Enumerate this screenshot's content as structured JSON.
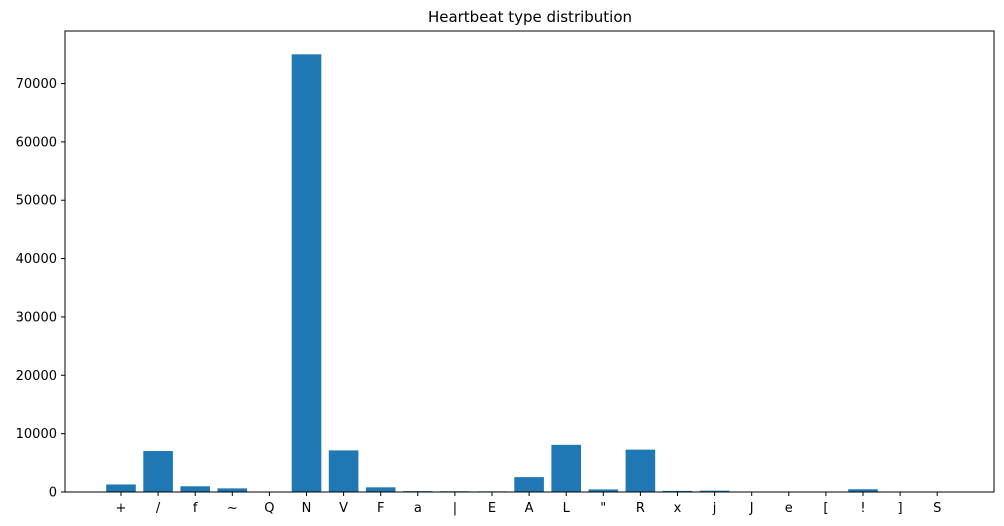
{
  "chart_data": {
    "type": "bar",
    "title": "Heartbeat type distribution",
    "xlabel": "",
    "ylabel": "",
    "categories": [
      "+",
      "/",
      "f",
      "~",
      "Q",
      "N",
      "V",
      "F",
      "a",
      "|",
      "E",
      "A",
      "L",
      "\"",
      "R",
      "x",
      "j",
      "J",
      "e",
      "[",
      "!",
      "]",
      "S"
    ],
    "values": [
      1290,
      7020,
      980,
      620,
      33,
      75000,
      7130,
      800,
      150,
      130,
      110,
      2550,
      8080,
      440,
      7260,
      190,
      230,
      85,
      16,
      6,
      470,
      6,
      2
    ],
    "ylim": [
      0,
      79000
    ],
    "yticks": [
      0,
      10000,
      20000,
      30000,
      40000,
      50000,
      60000,
      70000
    ],
    "bar_color": "#1f77b4",
    "grid": false,
    "legend": "none"
  }
}
